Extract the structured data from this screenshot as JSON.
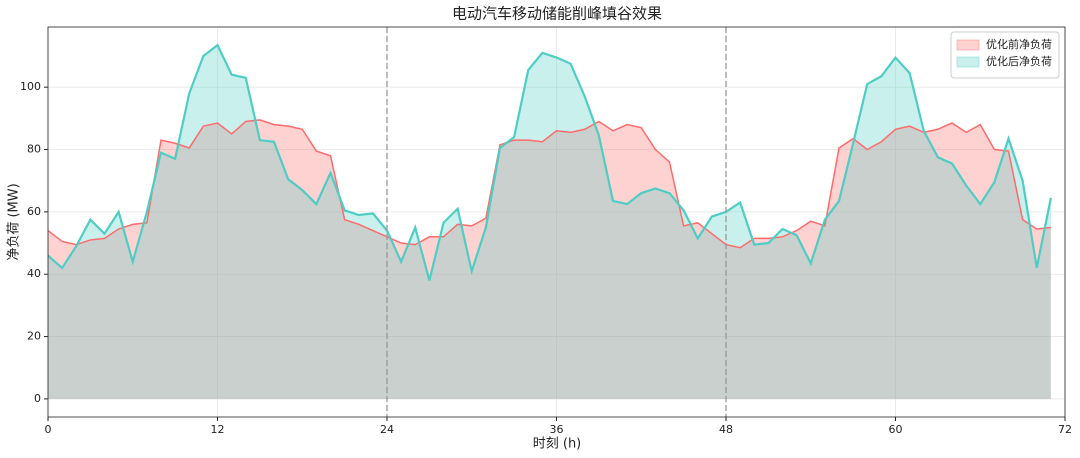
{
  "chart_data": {
    "type": "area",
    "title": "电动汽车移动储能削峰填谷效果",
    "x_label": "时刻 (h)",
    "y_label": "净负荷 (MW)",
    "x": [
      0,
      1,
      2,
      3,
      4,
      5,
      6,
      7,
      8,
      9,
      10,
      11,
      12,
      13,
      14,
      15,
      16,
      17,
      18,
      19,
      20,
      21,
      22,
      23,
      24,
      25,
      26,
      27,
      28,
      29,
      30,
      31,
      32,
      33,
      34,
      35,
      36,
      37,
      38,
      39,
      40,
      41,
      42,
      43,
      44,
      45,
      46,
      47,
      48,
      49,
      50,
      51,
      52,
      53,
      54,
      55,
      56,
      57,
      58,
      59,
      60,
      61,
      62,
      63,
      64,
      65,
      66,
      67,
      68,
      69,
      70,
      71
    ],
    "series": [
      {
        "name": "优化前净负荷",
        "color": "#ff6b6b",
        "values": [
          54,
          50.5,
          49.5,
          51,
          51.5,
          54.5,
          56,
          56.5,
          83,
          82,
          80.5,
          87.5,
          88.5,
          85,
          89,
          89.5,
          88,
          87.5,
          86.5,
          79.5,
          78,
          57.5,
          56,
          54,
          52,
          50,
          49.5,
          52,
          52,
          56,
          55.5,
          58,
          81.5,
          83,
          83,
          82.5,
          86,
          85.5,
          86.5,
          89,
          86,
          88,
          87,
          80,
          76,
          55.5,
          56.5,
          53,
          49.5,
          48.5,
          51.5,
          51.5,
          52,
          54,
          57,
          55.5,
          80.5,
          83.5,
          80,
          82.5,
          86.5,
          87.5,
          85.5,
          86.5,
          88.5,
          85.5,
          88,
          80,
          79.5,
          57.5,
          54.5,
          55
        ]
      },
      {
        "name": "优化后净负荷",
        "color": "#4ecdc4",
        "values": [
          46,
          42,
          49,
          57.5,
          53,
          60,
          44,
          60,
          79,
          77,
          98,
          110,
          113.5,
          104,
          103,
          83,
          82.5,
          70.5,
          67,
          62.5,
          72.5,
          60.5,
          59,
          59.5,
          54,
          44,
          55,
          38,
          56.5,
          61,
          41,
          55,
          80.5,
          84,
          105.5,
          111,
          109.5,
          107.5,
          97,
          84.5,
          63.5,
          62.5,
          66,
          67.5,
          66,
          60.5,
          51.5,
          58.5,
          60,
          63,
          49.5,
          50,
          54.5,
          52.5,
          43.5,
          57.5,
          63.5,
          82,
          101,
          103.5,
          109.5,
          104.5,
          86,
          77.5,
          75.5,
          68.5,
          62.5,
          69.5,
          83.5,
          70,
          42,
          64.5
        ]
      }
    ],
    "xlim": [
      0,
      72
    ],
    "ylim": [
      -5.8,
      119.3
    ],
    "xticks": [
      0,
      12,
      24,
      36,
      48,
      60,
      72
    ],
    "yticks": [
      0,
      20,
      40,
      60,
      80,
      100
    ],
    "vlines": [
      24,
      48
    ],
    "grid": true,
    "legend": "upper right",
    "fill_opacity": 0.3
  }
}
